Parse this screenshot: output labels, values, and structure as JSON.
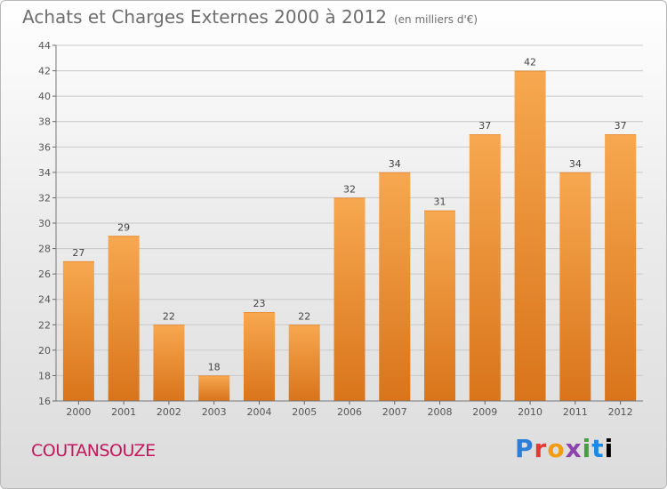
{
  "header": {
    "title": "Achats et Charges Externes 2000 à 2012",
    "unit": "(en milliers d'€)"
  },
  "footer": {
    "city": "COUTANSOUZE",
    "brand": "Proxiti"
  },
  "colors": {
    "bar_light": "#f7a850",
    "bar_dark": "#d9741a",
    "city": "#c2185b"
  },
  "chart_data": {
    "type": "bar",
    "title": "Achats et Charges Externes 2000 à 2012",
    "subtitle": "(en milliers d'€)",
    "categories": [
      "2000",
      "2001",
      "2002",
      "2003",
      "2004",
      "2005",
      "2006",
      "2007",
      "2008",
      "2009",
      "2010",
      "2011",
      "2012"
    ],
    "values": [
      27,
      29,
      22,
      18,
      23,
      22,
      32,
      34,
      31,
      37,
      42,
      34,
      37
    ],
    "ylim": [
      16,
      44
    ],
    "yticks": [
      16,
      18,
      20,
      22,
      24,
      26,
      28,
      30,
      32,
      34,
      36,
      38,
      40,
      42,
      44
    ],
    "grid": true,
    "data_labels": true
  }
}
